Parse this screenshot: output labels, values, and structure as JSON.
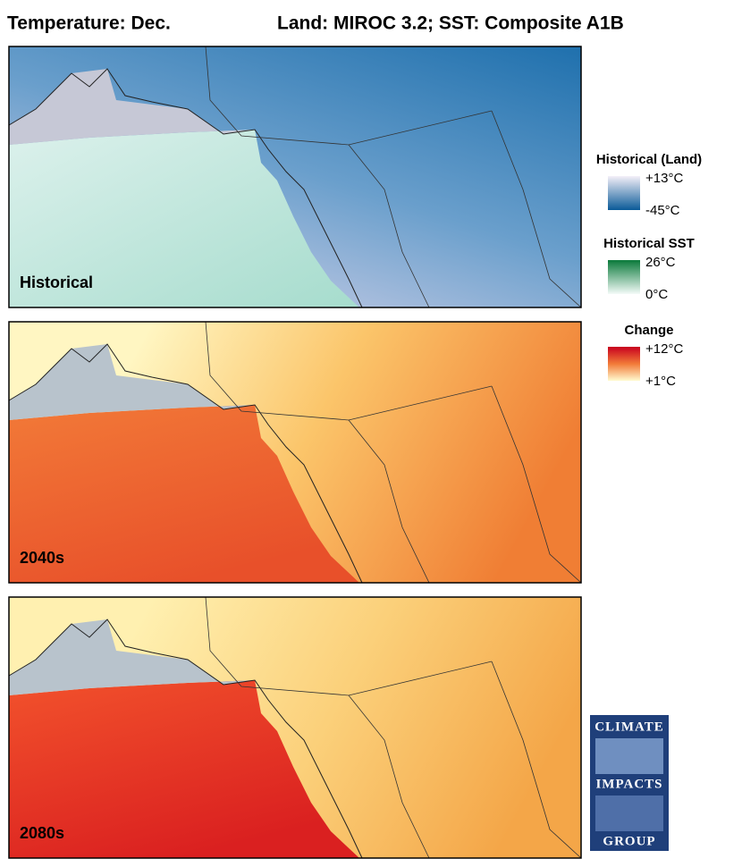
{
  "header": {
    "title": "Temperature: Dec.",
    "subtitle": "Land: MIROC 3.2; SST: Composite A1B"
  },
  "panels": [
    {
      "label": "Historical"
    },
    {
      "label": "2040s"
    },
    {
      "label": "2080s"
    }
  ],
  "legends": [
    {
      "title": "Historical (Land)",
      "max": "+13°C",
      "min": "-45°C"
    },
    {
      "title": "Historical SST",
      "max": "26°C",
      "min": "0°C"
    },
    {
      "title": "Change",
      "max": "+12°C",
      "min": "+1°C"
    }
  ],
  "logo": {
    "lines": [
      "CLIMATE",
      "IMPACTS",
      "GROUP"
    ]
  }
}
